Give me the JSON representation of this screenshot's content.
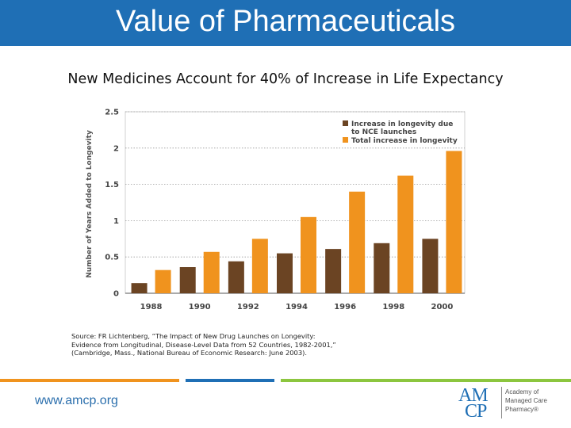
{
  "slide": {
    "title": "Value of Pharmaceuticals",
    "subtitle": "New Medicines Account for 40% of Increase in Life Expectancy",
    "source_lines": [
      "Source: FR Lichtenberg, “The Impact of New Drug Launches on Longevity:",
      "Evidence from Longitudinal, Disease-Level Data from 52 Countries, 1982-2001,”",
      "(Cambridge, Mass., National Bureau of Economic Research: June 2003)."
    ],
    "footer_url": "www.amcp.org",
    "logo": {
      "letters_top": "AM",
      "letters_bottom": "CP",
      "text_lines": [
        "Academy of",
        "Managed Care",
        "Pharmacy®"
      ]
    }
  },
  "colors": {
    "header_bg": "#1f6fb5",
    "nce_bar": "#6b4423",
    "total_bar": "#f0931e"
  },
  "chart_data": {
    "type": "bar",
    "title": "",
    "xlabel": "",
    "ylabel": "Number of Years Added to Longevity",
    "categories": [
      "1988",
      "1990",
      "1992",
      "1994",
      "1996",
      "1998",
      "2000"
    ],
    "series": [
      {
        "name": "Increase in longevity due to NCE launches",
        "legend_lines": [
          "Increase in longevity due",
          "to NCE launches"
        ],
        "values": [
          0.14,
          0.36,
          0.44,
          0.55,
          0.61,
          0.69,
          0.75
        ]
      },
      {
        "name": "Total increase in longevity",
        "legend_lines": [
          "Total increase in longevity"
        ],
        "values": [
          0.32,
          0.57,
          0.75,
          1.05,
          1.4,
          1.62,
          1.96
        ]
      }
    ],
    "ylim": [
      0,
      2.5
    ],
    "yticks": [
      0,
      0.5,
      1,
      1.5,
      2,
      2.5
    ],
    "ytick_labels": [
      "0",
      "0.5",
      "1",
      "1.5",
      "2",
      "2.5"
    ],
    "grid": true,
    "legend_position": "top-right"
  }
}
